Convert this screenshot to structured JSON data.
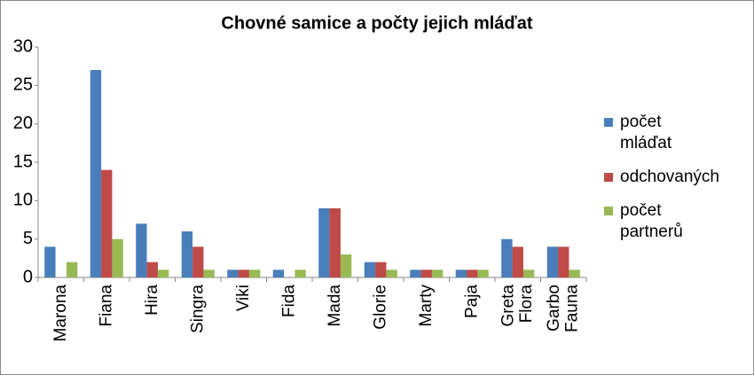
{
  "chart_data": {
    "type": "bar",
    "title": "Chovné samice a počty jejich mláďat",
    "categories": [
      "Marona",
      "Fiana",
      "Hira",
      "Singra",
      "Viki",
      "Fida",
      "Mada",
      "Glorie",
      "Marty",
      "Paja",
      "Greta Flora",
      "Garbo Fauna"
    ],
    "series": [
      {
        "name": "počet mláďat",
        "color": "#4a7ebb",
        "values": [
          4,
          27,
          7,
          6,
          1,
          1,
          9,
          2,
          1,
          1,
          5,
          4
        ]
      },
      {
        "name": "odchovaných",
        "color": "#be4b48",
        "values": [
          0,
          14,
          2,
          4,
          1,
          0,
          9,
          2,
          1,
          1,
          4,
          4
        ]
      },
      {
        "name": "počet partnerů",
        "color": "#98b954",
        "values": [
          2,
          5,
          1,
          1,
          1,
          1,
          3,
          1,
          1,
          1,
          1,
          1
        ]
      }
    ],
    "ylim": [
      0,
      30
    ],
    "yticks": [
      0,
      5,
      10,
      15,
      20,
      25,
      30
    ],
    "grid": false,
    "legend": "right"
  }
}
